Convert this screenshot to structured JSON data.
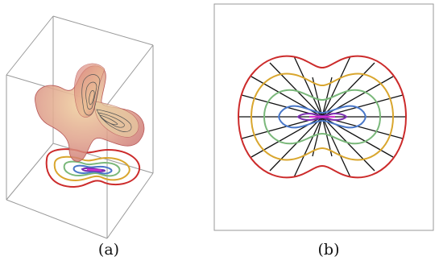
{
  "panels": [
    {
      "id": "a",
      "caption": "(a)"
    },
    {
      "id": "b",
      "caption": "(b)"
    }
  ],
  "colors": {
    "frame": "#9a9a9a",
    "surface": "#d98a8a",
    "contours": [
      "#cc2b2b",
      "#d9a62e",
      "#7ab87a",
      "#4a78c9",
      "#7b2fb0",
      "#d030d0"
    ],
    "rays": "#111111"
  }
}
